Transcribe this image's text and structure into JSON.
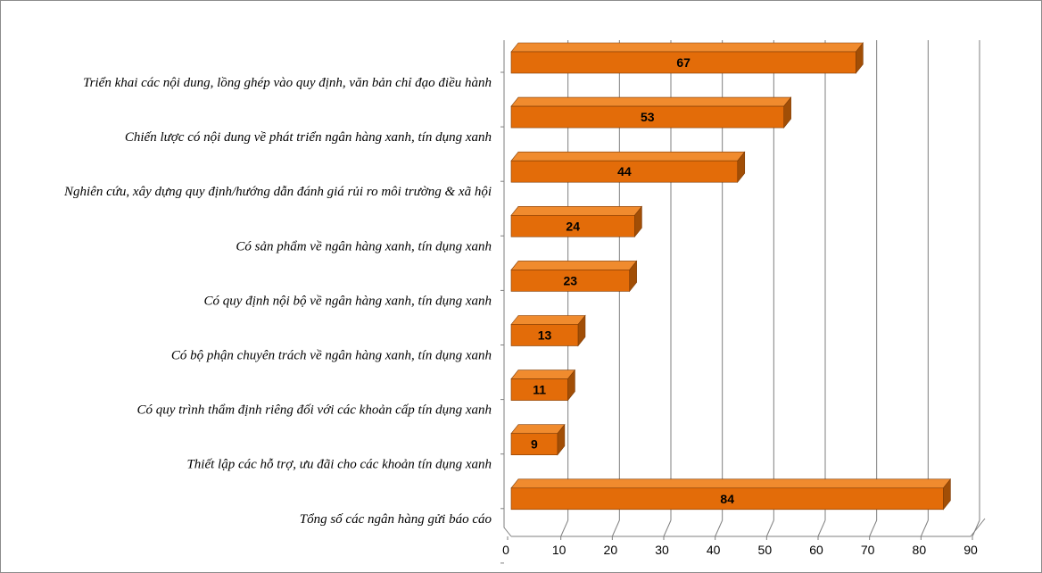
{
  "chart_data": {
    "type": "bar",
    "orientation": "horizontal",
    "style": "3d-clustered",
    "categories": [
      "Triển khai các nội dung, lồng ghép vào quy định, văn bản chỉ đạo điều hành",
      "Chiến lược có nội dung về phát triển ngân hàng xanh, tín dụng xanh",
      "Nghiên cứu, xây dựng quy định/hướng dẫn đánh giá rủi ro môi trường & xã hội",
      "Có sản phẩm về ngân hàng xanh, tín dụng xanh",
      "Có quy định nội bộ về ngân hàng xanh, tín dụng xanh",
      "Có bộ phận chuyên trách về ngân hàng xanh, tín dụng xanh",
      "Có quy trình thẩm định riêng đối với các khoản cấp tín dụng xanh",
      "Thiết lập các hỗ trợ, ưu đãi cho các khoản tín dụng xanh",
      "Tổng số các ngân hàng gửi báo cáo"
    ],
    "values": [
      67,
      53,
      44,
      24,
      23,
      13,
      11,
      9,
      84
    ],
    "data_labels": [
      "67",
      "53",
      "44",
      "24",
      "23",
      "13",
      "11",
      "9",
      "84"
    ],
    "xlim": [
      0,
      90
    ],
    "x_ticks": [
      0,
      10,
      20,
      30,
      40,
      50,
      60,
      70,
      80,
      90
    ],
    "x_tick_labels": [
      "0",
      "10",
      "20",
      "30",
      "40",
      "50",
      "60",
      "70",
      "80",
      "90"
    ],
    "grid": true,
    "legend": "none",
    "title": "",
    "xlabel": "",
    "ylabel": "",
    "colors": {
      "bar_front": "#E36C09",
      "bar_top": "#F08B2E",
      "bar_side": "#A14E06",
      "bar_outline": "#7F3B04",
      "grid": "#7f7f7f",
      "wall": "#ffffff"
    }
  }
}
